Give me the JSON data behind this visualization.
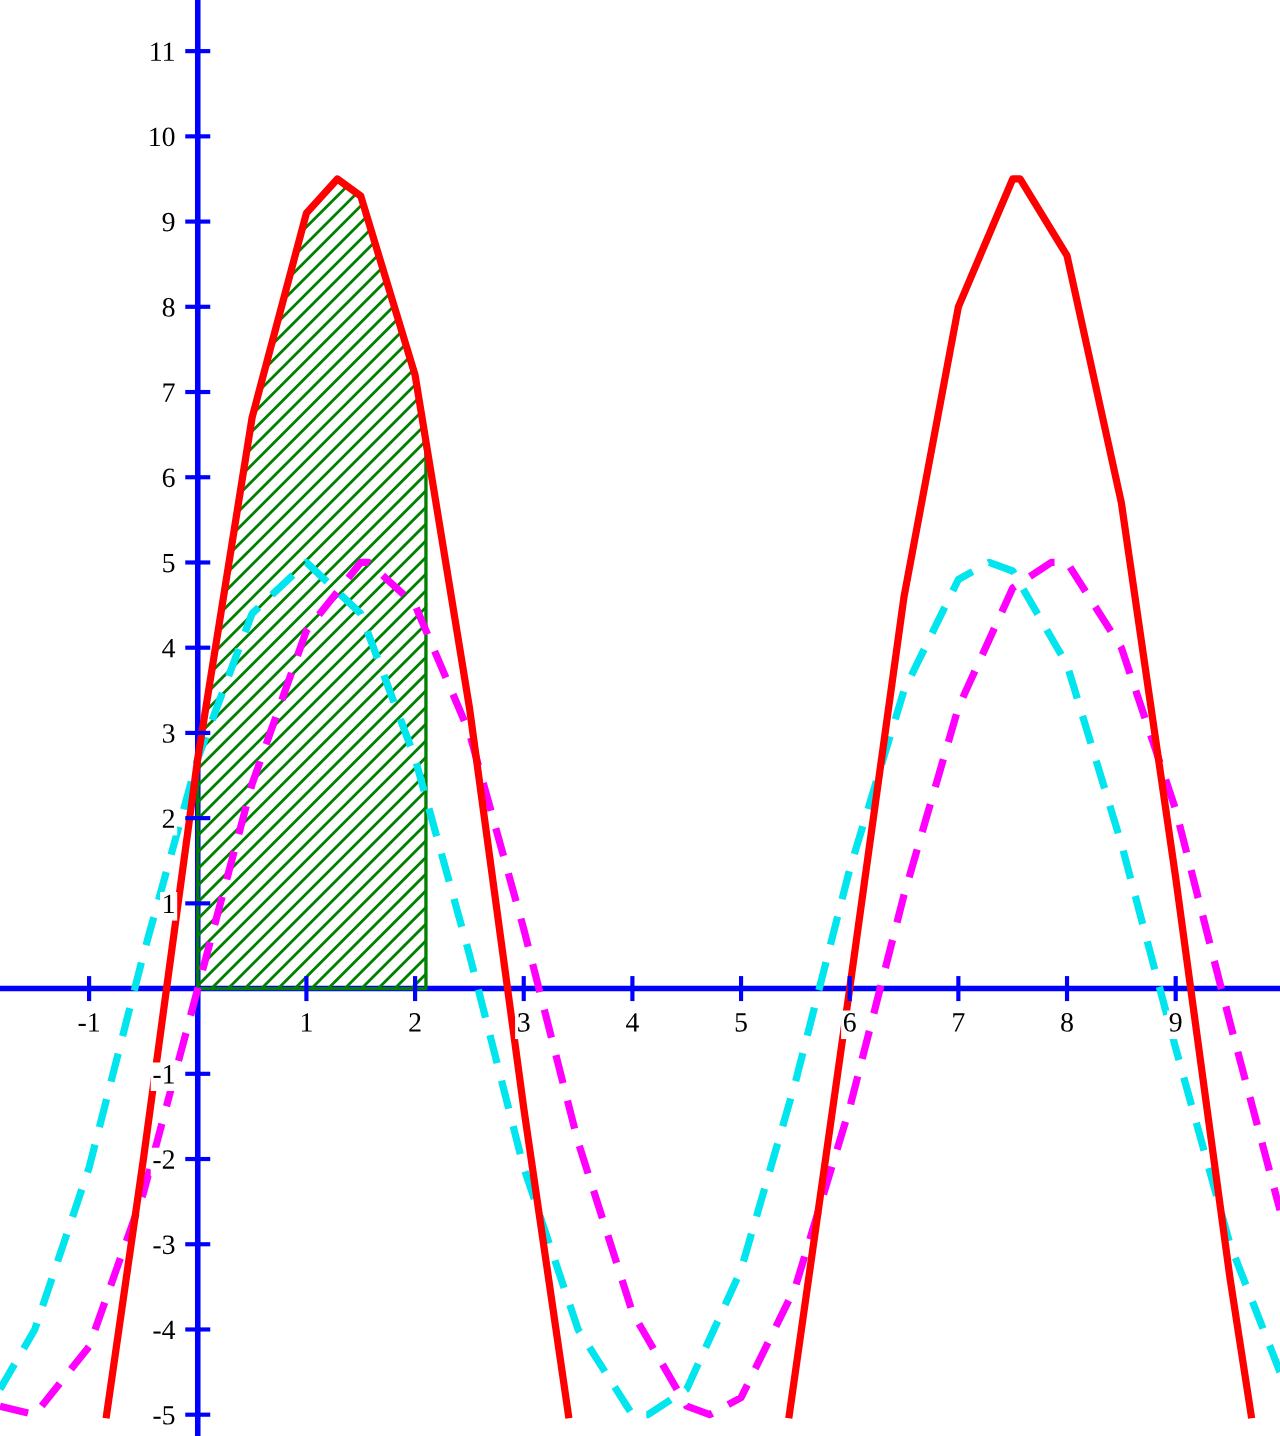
{
  "chart_data": {
    "type": "line",
    "xlim": [
      -1.82,
      9.96
    ],
    "ylim": [
      -5.25,
      11.6
    ],
    "xticks": [
      -1,
      1,
      2,
      3,
      4,
      5,
      6,
      7,
      8,
      9
    ],
    "yticks": [
      -5,
      -4,
      -3,
      -2,
      -1,
      1,
      2,
      3,
      4,
      5,
      6,
      7,
      8,
      9,
      10,
      11
    ],
    "grid": false,
    "legend": false,
    "marker": "none",
    "series": [
      {
        "type": "area",
        "color": "#008000",
        "x": [
          0,
          0.5,
          1,
          1.285,
          1.5,
          2,
          2.1
        ],
        "values": [
          2.67,
          6.71,
          9.11,
          9.5,
          9.28,
          7.17,
          6.3
        ]
      },
      {
        "color": "#00e5ee",
        "line_style": "dashed",
        "x": [
          -1.82,
          -1.5,
          -1,
          -0.5,
          0,
          0.5,
          1,
          1.5,
          2,
          2.5,
          3,
          3.5,
          4,
          4.142,
          4.5,
          5,
          5.5,
          6,
          6.5,
          7,
          7.283,
          7.5,
          8,
          8.5,
          9,
          9.5,
          9.96
        ],
        "values": [
          -4.7,
          -4.0,
          -2.1,
          0.4,
          2.7,
          4.4,
          5,
          4.4,
          2.7,
          0.4,
          -2.1,
          -4.0,
          -5.0,
          -5,
          -4.7,
          -3.3,
          -1.1,
          1.4,
          3.5,
          4.8,
          5,
          4.9,
          3.8,
          1.7,
          -0.7,
          -3.0,
          -4.5
        ]
      },
      {
        "color": "#ff00ff",
        "line_style": "dashed",
        "x": [
          -1.82,
          -1.5,
          -1,
          -0.5,
          0,
          0.5,
          1,
          1.5,
          1.571,
          2,
          2.5,
          3,
          3.5,
          4,
          4.5,
          4.712,
          5,
          5.5,
          6,
          6.5,
          7,
          7.5,
          7.854,
          8,
          8.5,
          9,
          9.5,
          9.96
        ],
        "values": [
          -4.9,
          -5.0,
          -4.2,
          -2.4,
          0,
          2.4,
          4.2,
          5.0,
          5,
          4.5,
          3.0,
          0.7,
          -1.8,
          -3.8,
          -4.9,
          -5,
          -4.8,
          -3.5,
          -1.4,
          1.1,
          3.3,
          4.7,
          5,
          5.0,
          4.0,
          2.1,
          -0.4,
          -2.6
        ]
      },
      {
        "color": "#ff0000",
        "line_style": "solid",
        "x": [
          -0.839,
          -0.5,
          0,
          0.5,
          1,
          1.285,
          1.5,
          2,
          2.5,
          3,
          3.411,
          4.43,
          5.444,
          5.5,
          6,
          6.5,
          7,
          7.5,
          7.568,
          8,
          8.5,
          9,
          9.5,
          9.694
        ],
        "values": [
          -5,
          -2.0,
          2.7,
          6.7,
          9.1,
          9.5,
          9.3,
          7.2,
          3.3,
          -1.4,
          -5,
          null,
          -5,
          -4.5,
          0.0,
          4.6,
          8.0,
          9.5,
          9.5,
          8.6,
          5.7,
          1.3,
          -3.4,
          -5
        ]
      }
    ]
  }
}
